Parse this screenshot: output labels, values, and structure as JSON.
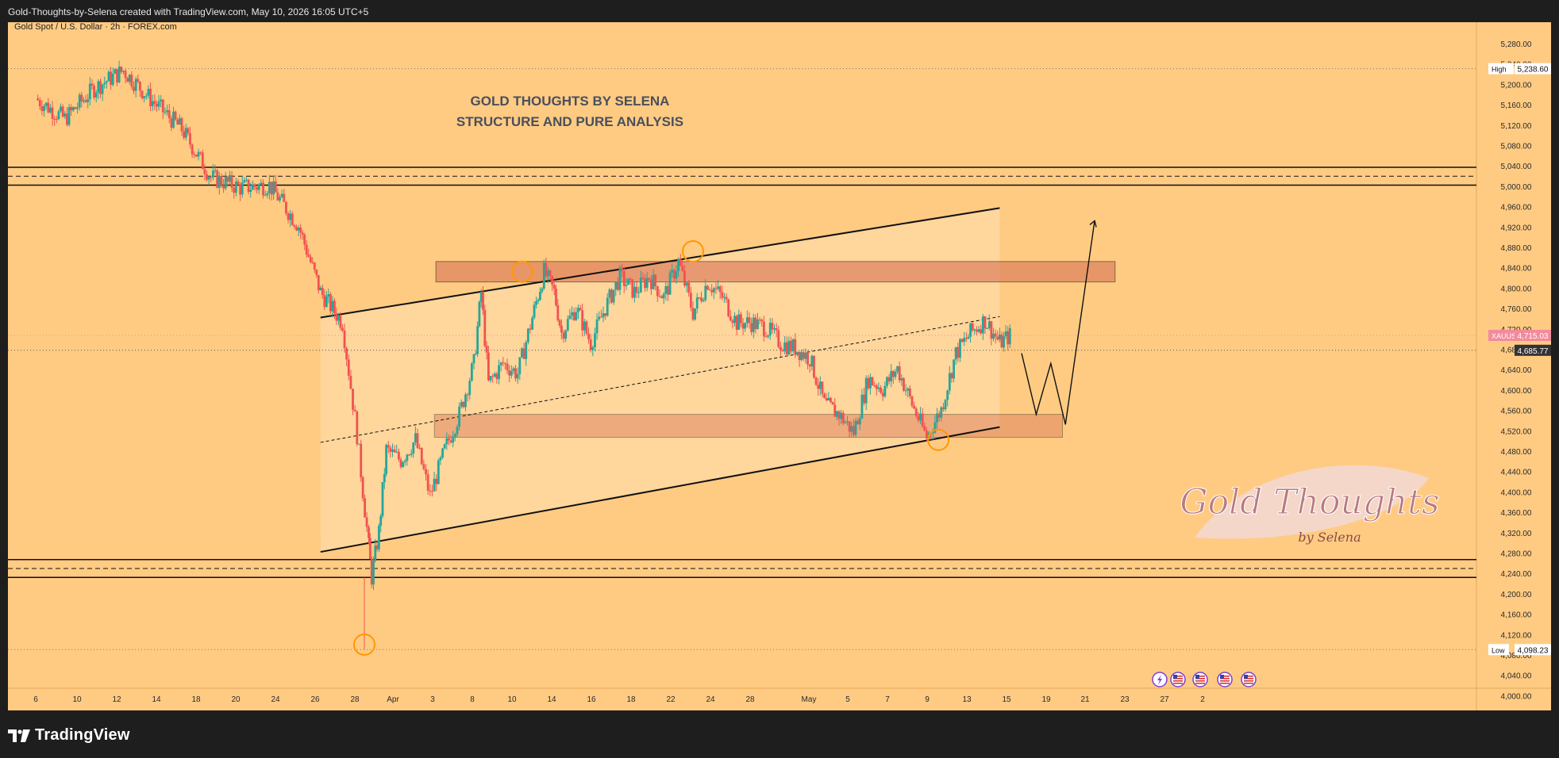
{
  "header": {
    "attribution": "Gold-Thoughts-by-Selena created with TradingView.com, May 10, 2026 16:05 UTC+5"
  },
  "chart_meta": {
    "symbol_line": "Gold Spot / U.S. Dollar · 2h · FOREX.com",
    "brand": "TradingView",
    "signature_line1": "Gold Thoughts",
    "signature_line2": "by Selena"
  },
  "colors": {
    "background": "#ffcb83",
    "panel": "#1e1e1e",
    "bull": "#26a69a",
    "bear": "#ef5350",
    "zone": "#d97757",
    "channel_fill": "#ffe0b0",
    "marker": "#ff9800",
    "current_price": "#f28b9b"
  },
  "chart_data": {
    "type": "candlestick",
    "title": "GOLD THOUGHTS BY SELENA",
    "subtitle": "STRUCTURE AND PURE ANALYSIS",
    "ylim": [
      3980,
      5300
    ],
    "y_ticks": [
      "5,280.00",
      "5,240.00",
      "5,200.00",
      "5,160.00",
      "5,120.00",
      "5,080.00",
      "5,040.00",
      "5,000.00",
      "4,960.00",
      "4,920.00",
      "4,880.00",
      "4,840.00",
      "4,800.00",
      "4,760.00",
      "4,720.00",
      "4,680.00",
      "4,640.00",
      "4,600.00",
      "4,560.00",
      "4,520.00",
      "4,480.00",
      "4,440.00",
      "4,400.00",
      "4,360.00",
      "4,320.00",
      "4,280.00",
      "4,240.00",
      "4,200.00",
      "4,160.00",
      "4,120.00",
      "4,080.00",
      "4,040.00",
      "4,000.00"
    ],
    "x_ticks": [
      "6",
      "10",
      "12",
      "14",
      "18",
      "20",
      "24",
      "26",
      "28",
      "Apr",
      "3",
      "8",
      "10",
      "14",
      "16",
      "18",
      "22",
      "24",
      "28",
      "May",
      "5",
      "7",
      "9",
      "13",
      "15",
      "19",
      "21",
      "23",
      "27",
      "2"
    ],
    "price_path": [
      [
        0,
        5180
      ],
      [
        2,
        5140
      ],
      [
        4,
        5200
      ],
      [
        6,
        5235
      ],
      [
        8,
        5175
      ],
      [
        10,
        5120
      ],
      [
        12,
        5025
      ],
      [
        14,
        5005
      ],
      [
        16,
        5010
      ],
      [
        18,
        4930
      ],
      [
        19.5,
        4800
      ],
      [
        21,
        4740
      ],
      [
        22,
        4520
      ],
      [
        22.8,
        4300
      ],
      [
        23,
        4240
      ],
      [
        23.5,
        4330
      ],
      [
        24,
        4490
      ],
      [
        25,
        4470
      ],
      [
        26,
        4510
      ],
      [
        27,
        4400
      ],
      [
        28,
        4490
      ],
      [
        29,
        4560
      ],
      [
        30,
        4660
      ],
      [
        30.5,
        4800
      ],
      [
        31,
        4620
      ],
      [
        32,
        4660
      ],
      [
        33,
        4640
      ],
      [
        34,
        4750
      ],
      [
        34.8,
        4840
      ],
      [
        35.5,
        4800
      ],
      [
        36,
        4720
      ],
      [
        37,
        4770
      ],
      [
        38,
        4700
      ],
      [
        39,
        4770
      ],
      [
        40,
        4830
      ],
      [
        41,
        4800
      ],
      [
        42,
        4830
      ],
      [
        43,
        4790
      ],
      [
        44,
        4860
      ],
      [
        45,
        4760
      ],
      [
        46,
        4820
      ],
      [
        47,
        4790
      ],
      [
        48,
        4740
      ],
      [
        49,
        4740
      ],
      [
        50,
        4730
      ],
      [
        51,
        4700
      ],
      [
        52,
        4690
      ],
      [
        53,
        4670
      ],
      [
        54,
        4580
      ],
      [
        55,
        4560
      ],
      [
        56,
        4525
      ],
      [
        57,
        4630
      ],
      [
        58,
        4610
      ],
      [
        59,
        4650
      ],
      [
        60,
        4580
      ],
      [
        61,
        4515
      ],
      [
        62,
        4570
      ],
      [
        63,
        4680
      ],
      [
        64,
        4720
      ],
      [
        65,
        4745
      ],
      [
        66,
        4700
      ],
      [
        66.7,
        4715
      ]
    ],
    "current_price": "4,715.03",
    "current_label": "XAUUSD",
    "reference_price": "4,685.77",
    "high": {
      "label": "High",
      "value": "5,238.60"
    },
    "low": {
      "label": "Low",
      "value": "4,098.23"
    },
    "resistance_zone": [
      4820,
      4860
    ],
    "support_zone": [
      4515,
      4560
    ],
    "upper_band": [
      5010,
      5045
    ],
    "lower_band": [
      4240,
      4275
    ],
    "channel_upper": [
      [
        19.5,
        4750
      ],
      [
        66,
        4965
      ]
    ],
    "channel_lower": [
      [
        19.5,
        4290
      ],
      [
        66,
        4535
      ]
    ],
    "channel_mid": [
      [
        19.5,
        4505
      ],
      [
        66,
        4752
      ]
    ],
    "projection": [
      [
        67.5,
        4680
      ],
      [
        68.5,
        4560
      ],
      [
        69.5,
        4660
      ],
      [
        70.5,
        4540
      ],
      [
        72.5,
        4940
      ]
    ],
    "markers": [
      [
        33.3,
        4840
      ],
      [
        45,
        4880
      ],
      [
        61.8,
        4510
      ],
      [
        22.5,
        4108
      ]
    ],
    "events": [
      "econ-flash-icon",
      "us-flag-icon",
      "us-flag-icon",
      "us-flag-icon",
      "us-flag-icon"
    ]
  }
}
